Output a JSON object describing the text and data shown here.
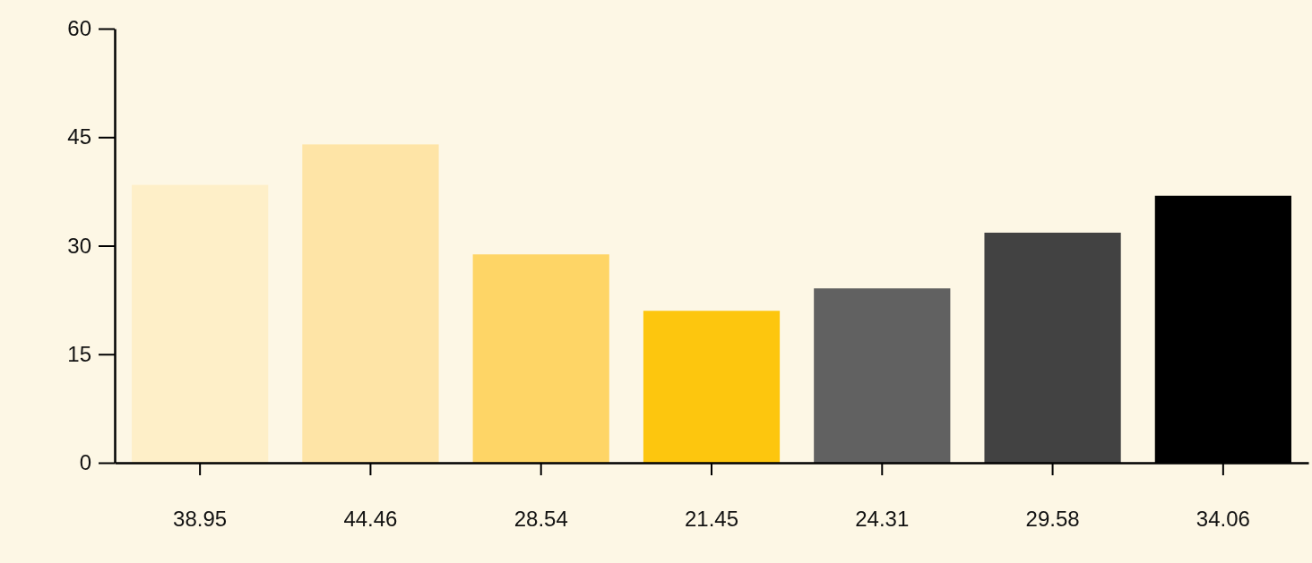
{
  "chart_data": {
    "type": "bar",
    "categories": [
      "38.95",
      "44.46",
      "28.54",
      "21.45",
      "24.31",
      "29.58",
      "34.06"
    ],
    "values": [
      38.4,
      44,
      28.8,
      21,
      24.1,
      31.8,
      36.9
    ],
    "colors": [
      "#feefc8",
      "#fee4a6",
      "#fed566",
      "#fdc60e",
      "#616161",
      "#424242",
      "#000000"
    ],
    "ylim": [
      0,
      60
    ],
    "yticks": [
      0,
      15,
      30,
      45,
      60
    ],
    "grid": false
  }
}
